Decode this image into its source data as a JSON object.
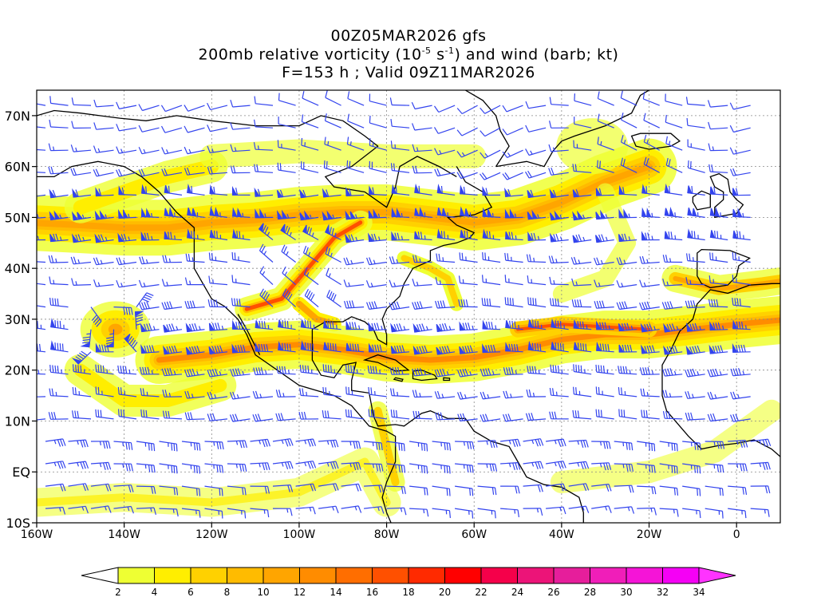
{
  "title": {
    "line1": "00Z05MAR2026 gfs",
    "line2_prefix": "200mb relative vorticity (10",
    "line2_exp1": "-5",
    "line2_mid": " s",
    "line2_exp2": "-1",
    "line2_suffix": ") and wind (barb; kt)",
    "line3": "F=153 h ; Valid 09Z11MAR2026"
  },
  "map": {
    "lon_range": [
      -160,
      10
    ],
    "lat_range": [
      -10,
      75
    ],
    "lat_ticks": [
      {
        "value": 70,
        "label": "70N"
      },
      {
        "value": 60,
        "label": "60N"
      },
      {
        "value": 50,
        "label": "50N"
      },
      {
        "value": 40,
        "label": "40N"
      },
      {
        "value": 30,
        "label": "30N"
      },
      {
        "value": 20,
        "label": "20N"
      },
      {
        "value": 10,
        "label": "10N"
      },
      {
        "value": 0,
        "label": "EQ"
      },
      {
        "value": -10,
        "label": "10S"
      }
    ],
    "lon_ticks": [
      {
        "value": -160,
        "label": "160W"
      },
      {
        "value": -140,
        "label": "140W"
      },
      {
        "value": -120,
        "label": "120W"
      },
      {
        "value": -100,
        "label": "100W"
      },
      {
        "value": -80,
        "label": "80W"
      },
      {
        "value": -60,
        "label": "60W"
      },
      {
        "value": -40,
        "label": "40W"
      },
      {
        "value": -20,
        "label": "20W"
      },
      {
        "value": 0,
        "label": "0"
      }
    ],
    "barb_color": "#3344ee",
    "coast_color": "#000000",
    "grid_color": "#888888"
  },
  "colorbar": {
    "labels": [
      "2",
      "4",
      "6",
      "8",
      "10",
      "12",
      "14",
      "16",
      "18",
      "20",
      "22",
      "24",
      "26",
      "28",
      "30",
      "32",
      "34"
    ],
    "colors": [
      "#ffffff",
      "#eeff33",
      "#ffee00",
      "#ffd100",
      "#ffbb00",
      "#ffa500",
      "#ff8c00",
      "#ff6e00",
      "#ff5000",
      "#ff2a00",
      "#ff0000",
      "#f5004a",
      "#ec1478",
      "#e61e9b",
      "#f01eb9",
      "#f514d7",
      "#f500f5",
      "#ff33ff"
    ]
  }
}
